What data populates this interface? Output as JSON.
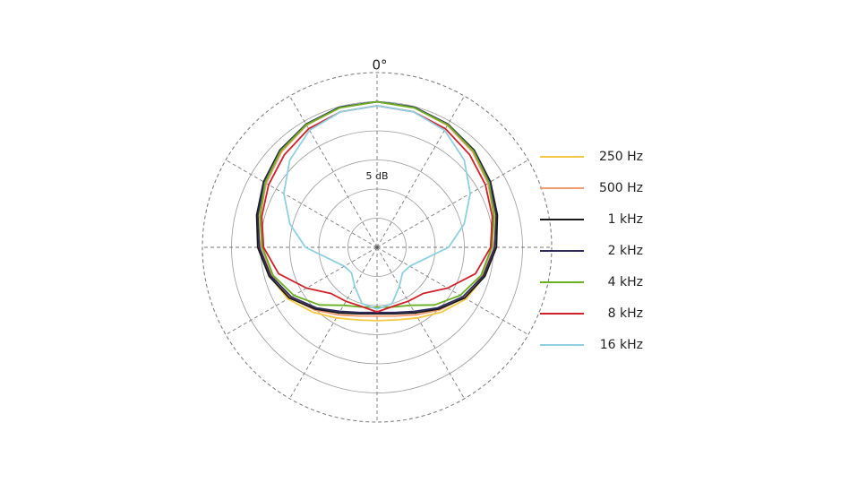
{
  "chart_data": {
    "type": "polar",
    "angle_label": "0°",
    "annotation": "5 dB",
    "rlim": [
      -25,
      5
    ],
    "rticks": [
      -20,
      -15,
      -10,
      -5,
      0,
      5
    ],
    "aticks": [
      0,
      30,
      60,
      90,
      120,
      150,
      180,
      210,
      240,
      270,
      300,
      330
    ],
    "angles": [
      0,
      15,
      30,
      45,
      60,
      75,
      90,
      105,
      120,
      135,
      150,
      165,
      180,
      195,
      210,
      225,
      240,
      255,
      270,
      285,
      300,
      315,
      330,
      345
    ],
    "series": [
      {
        "name": "250 Hz",
        "color": "#f5c842",
        "values": [
          0,
          -0.2,
          -0.7,
          -1.6,
          -2.7,
          -3.9,
          -4.8,
          -5.9,
          -7.3,
          -9.3,
          -11,
          -12.1,
          -12.4,
          -12.1,
          -11,
          -9.3,
          -7.3,
          -5.9,
          -4.8,
          -3.9,
          -2.7,
          -1.6,
          -0.7,
          -0.2
        ]
      },
      {
        "name": "500 Hz",
        "color": "#f29a6e",
        "values": [
          0,
          -0.2,
          -0.8,
          -1.8,
          -3,
          -4.2,
          -5.2,
          -6.3,
          -7.8,
          -9.8,
          -11.6,
          -12.8,
          -13.2,
          -12.8,
          -11.6,
          -9.8,
          -7.8,
          -6.3,
          -5.2,
          -4.2,
          -3,
          -1.8,
          -0.8,
          -0.2
        ]
      },
      {
        "name": "1 kHz",
        "color": "#1a1a1a",
        "values": [
          0,
          -0.1,
          -0.6,
          -1.4,
          -2.5,
          -3.6,
          -4.5,
          -5.8,
          -7.6,
          -10,
          -12,
          -13.2,
          -13.6,
          -13.2,
          -12,
          -10,
          -7.6,
          -5.8,
          -4.5,
          -3.6,
          -2.5,
          -1.4,
          -0.6,
          -0.1
        ]
      },
      {
        "name": "2 kHz",
        "color": "#2d2a5c",
        "values": [
          0,
          -0.1,
          -0.6,
          -1.5,
          -2.6,
          -3.8,
          -4.8,
          -6.1,
          -8,
          -10.3,
          -12.3,
          -13.4,
          -13.8,
          -13.4,
          -12.3,
          -10.3,
          -8,
          -6.1,
          -4.8,
          -3.8,
          -2.6,
          -1.5,
          -0.6,
          -0.1
        ]
      },
      {
        "name": "4 kHz",
        "color": "#6ab023",
        "values": [
          0,
          -0.2,
          -0.7,
          -1.6,
          -2.8,
          -4.2,
          -5.3,
          -6.5,
          -8.5,
          -11,
          -13.5,
          -14.4,
          -14.7,
          -14.4,
          -13.5,
          -11,
          -8.5,
          -6.5,
          -5.3,
          -4.2,
          -2.8,
          -1.6,
          -0.7,
          -0.2
        ]
      },
      {
        "name": "8 kHz",
        "color": "#d0202a",
        "values": [
          -0.7,
          -0.9,
          -1.5,
          -2.5,
          -3.5,
          -4.5,
          -5.5,
          -7.5,
          -11,
          -13.8,
          -14.3,
          -14.5,
          -13.9,
          -14.5,
          -14.3,
          -13.8,
          -11,
          -7.5,
          -5.5,
          -4.5,
          -3.5,
          -2.5,
          -1.5,
          -0.9
        ]
      },
      {
        "name": "16 kHz",
        "color": "#8ecfe0",
        "values": [
          -0.7,
          -0.9,
          -1.8,
          -3.8,
          -6.5,
          -9.5,
          -12.7,
          -16.8,
          -18.5,
          -18.8,
          -17.3,
          -15,
          -14.4,
          -15,
          -17.3,
          -18.8,
          -18.5,
          -16.8,
          -12.7,
          -9.5,
          -6.5,
          -3.8,
          -1.8,
          -0.9
        ]
      }
    ]
  }
}
